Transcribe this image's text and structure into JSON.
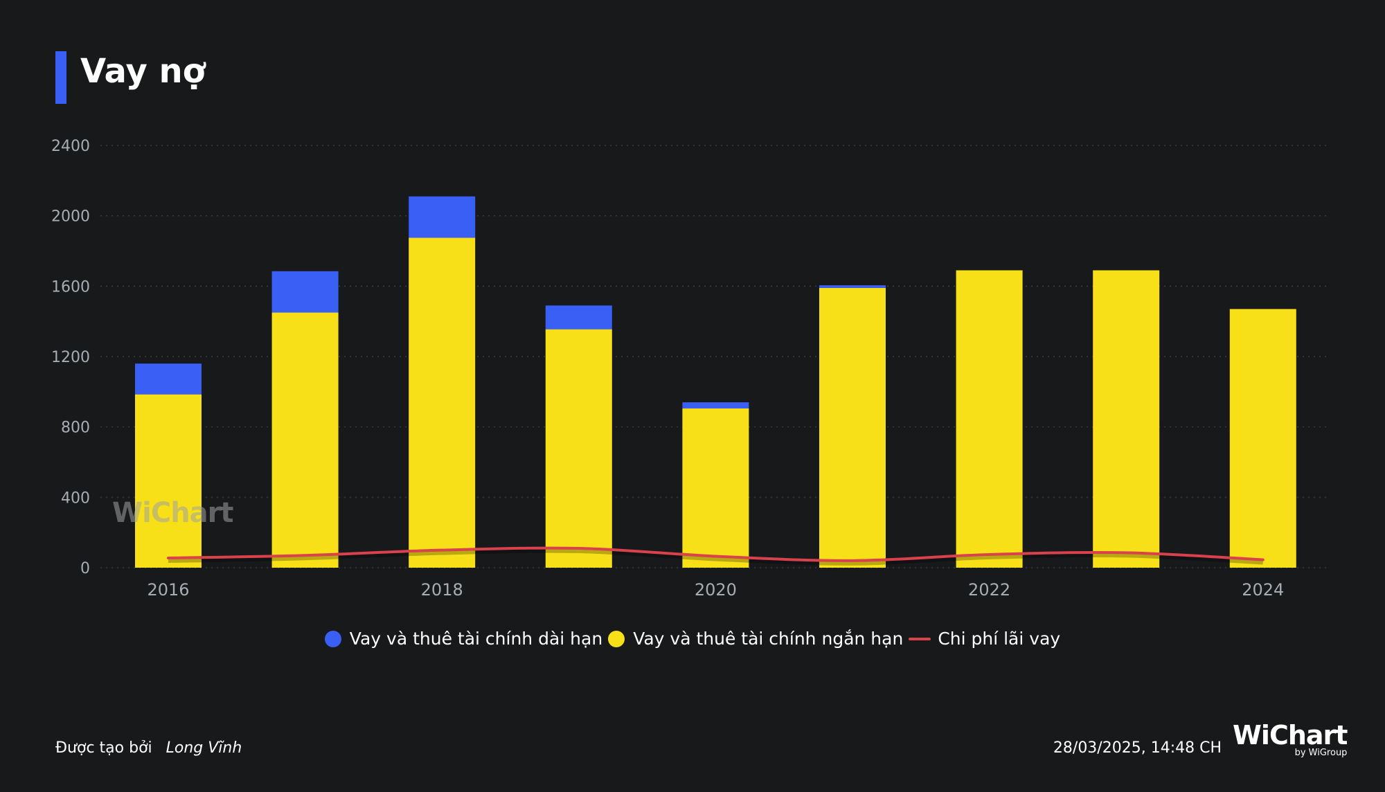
{
  "header": {
    "title": "Vay nợ"
  },
  "chart_data": {
    "type": "bar",
    "stacked": true,
    "categories": [
      "2016",
      "2017",
      "2018",
      "2019",
      "2020",
      "2021",
      "2022",
      "2023",
      "2024"
    ],
    "x_tick_labels": [
      "2016",
      "2018",
      "2020",
      "2022",
      "2024"
    ],
    "ylim": [
      0,
      2400
    ],
    "yticks": [
      0,
      400,
      800,
      1200,
      1600,
      2000,
      2400
    ],
    "grid": true,
    "series": [
      {
        "name": "Vay và thuê tài chính ngắn hạn",
        "kind": "bar",
        "color": "#f7e018",
        "values": [
          985,
          1450,
          1875,
          1355,
          905,
          1590,
          1690,
          1690,
          1470
        ]
      },
      {
        "name": "Vay và thuê tài chính dài hạn",
        "kind": "bar",
        "color": "#3a5ff5",
        "values": [
          175,
          235,
          235,
          135,
          35,
          15,
          0,
          0,
          0
        ]
      },
      {
        "name": "Chi phí lãi vay",
        "kind": "line",
        "color": "#d9414c",
        "values": [
          55,
          70,
          100,
          110,
          65,
          40,
          75,
          85,
          45
        ]
      }
    ],
    "legend_position": "bottom-center"
  },
  "legend": {
    "items": [
      {
        "label": "Vay và thuê tài chính dài hạn",
        "color": "#3a5ff5",
        "shape": "dot"
      },
      {
        "label": "Vay và thuê tài chính ngắn hạn",
        "color": "#f7e018",
        "shape": "dot"
      },
      {
        "label": "Chi phí lãi vay",
        "color": "#d9414c",
        "shape": "line"
      }
    ]
  },
  "watermark": {
    "text": "WiChart"
  },
  "footer": {
    "created_by_label": "Được tạo bởi",
    "author": "Long Vĩnh",
    "timestamp": "28/03/2025, 14:48 CH",
    "brand_name": "WiChart",
    "brand_sub": "by WiGroup"
  }
}
